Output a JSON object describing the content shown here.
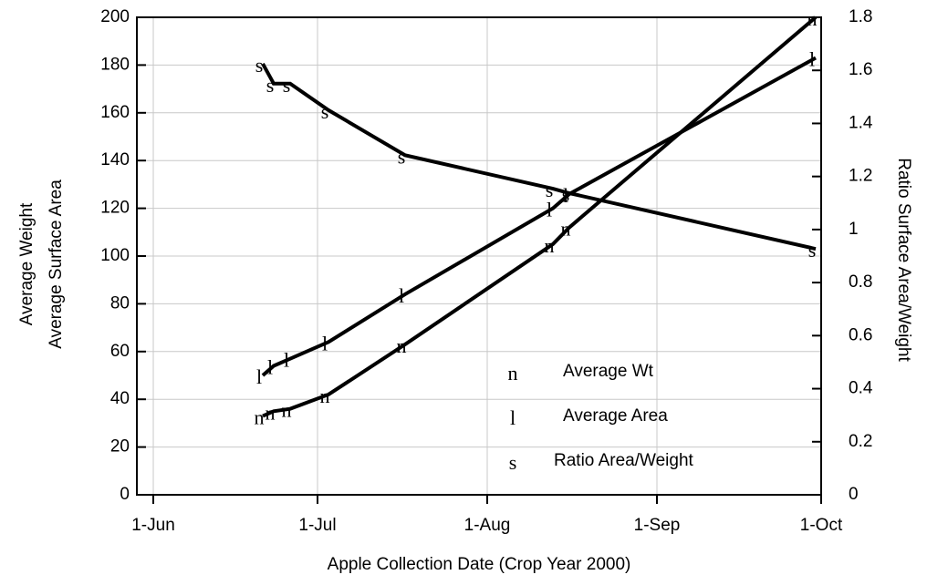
{
  "chart_data": {
    "type": "line",
    "x_label": "Apple Collection Date (Crop Year 2000)",
    "y_label": [
      "Average Weight",
      "Average Surface Area"
    ],
    "y2_label": "Ratio Surface Area/Weight",
    "x": [
      "21-Jun",
      "23-Jun",
      "26-Jun",
      "3-Jul",
      "17-Jul",
      "13-Aug",
      "16-Aug",
      "30-Sep"
    ],
    "xlim": [
      "29-May",
      "1-Oct"
    ],
    "xticks": [
      "1-Jun",
      "1-Jul",
      "1-Aug",
      "1-Sep",
      "1-Oct"
    ],
    "ylim": [
      0,
      200
    ],
    "yticks": [
      0,
      20,
      40,
      60,
      80,
      100,
      120,
      140,
      160,
      180,
      200
    ],
    "y2lim": [
      0,
      1.8
    ],
    "y2ticks": [
      0,
      0.2,
      0.4,
      0.6,
      0.8,
      1,
      1.2,
      1.4,
      1.6,
      1.8
    ],
    "grid": true,
    "series": [
      {
        "name": "Average Wt",
        "marker": "n",
        "color": "#000000",
        "values": [
          33,
          35,
          36,
          42,
          63,
          105,
          112,
          200
        ]
      },
      {
        "name": "Average Area",
        "marker": "l",
        "color": "#000000",
        "values": [
          50,
          54,
          57,
          64,
          84,
          120,
          126,
          183
        ]
      },
      {
        "name": "Ratio Area/Weight",
        "marker": "s",
        "color": "#000000",
        "axis": "y2",
        "values": [
          1.625,
          1.55,
          1.55,
          1.45,
          1.28,
          1.154,
          1.137,
          0.927
        ]
      }
    ]
  }
}
